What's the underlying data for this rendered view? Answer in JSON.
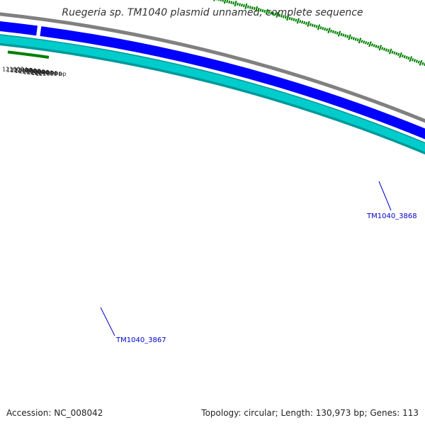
{
  "title": "Ruegeria sp. TM1040 plasmid unnamed, complete sequence",
  "footer": {
    "accession": "Accession: NC_008042",
    "summary": "Topology: circular; Length: 130,973 bp; Genes: 113"
  },
  "colors": {
    "backbone": "#808080",
    "forward_strand": "#0000ff",
    "reverse_strand": "#00cccc",
    "reverse_strand_edge": "#009999",
    "gc_ticks": "#008000",
    "gene_label": "#0000cc"
  },
  "tick_labels": [
    {
      "bp": 121000,
      "label": "121000 bp"
    },
    {
      "bp": 121200,
      "label": "121200 bp"
    },
    {
      "bp": 121400,
      "label": "121400 bp"
    },
    {
      "bp": 121600,
      "label": "121600 bp"
    },
    {
      "bp": 121800,
      "label": "121800 bp"
    },
    {
      "bp": 122000,
      "label": "122000 bp"
    },
    {
      "bp": 122200,
      "label": "122200 bp"
    },
    {
      "bp": 122400,
      "label": "122400 bp"
    },
    {
      "bp": 122600,
      "label": "122600 bp"
    }
  ],
  "genes": [
    {
      "name": "TM1040_3867",
      "strand": "reverse"
    },
    {
      "name": "TM1040_3868",
      "strand": "forward"
    }
  ]
}
